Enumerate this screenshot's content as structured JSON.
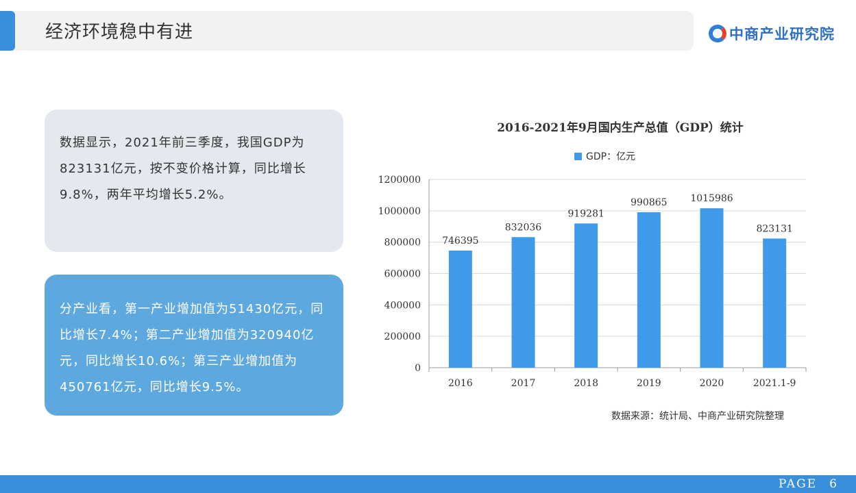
{
  "header": {
    "title": "经济环境稳中有进",
    "logo_text": "中商产业研究院"
  },
  "cards": [
    {
      "text": "数据显示，2021年前三季度，我国GDP为823131亿元，按不变价格计算，同比增长9.8%，两年平均增长5.2%。"
    },
    {
      "text": "分产业看，第一产业增加值为51430亿元，同比增长7.4%；第二产业增加值为320940亿元，同比增长10.6%；第三产业增加值为450761亿元，同比增长9.5%。"
    }
  ],
  "chart_data": {
    "type": "bar",
    "title": "2016-2021年9月国内生产总值（GDP）统计",
    "categories": [
      "2016",
      "2017",
      "2018",
      "2019",
      "2020",
      "2021.1-9"
    ],
    "series": [
      {
        "name": "GDP：亿元",
        "values": [
          746395,
          832036,
          919281,
          990865,
          1015986,
          823131
        ]
      }
    ],
    "yticks": [
      "0",
      "200000",
      "400000",
      "600000",
      "800000",
      "1000000",
      "1200000"
    ],
    "ylim": [
      0,
      1200000
    ],
    "grid": true,
    "legend": "top-center",
    "bar_color": "#3f9aea"
  },
  "source": "数据来源：统计局、中商产业研究院整理",
  "footer": {
    "page_label": "PAGE",
    "page_number": "6"
  },
  "colors": {
    "accent": "#3a8fdc",
    "card_blue": "#5ea8e0",
    "card_gray": "#e4e8ef"
  }
}
